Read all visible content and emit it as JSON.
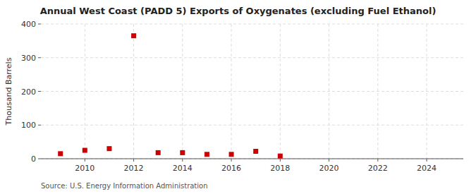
{
  "chart_data": {
    "type": "scatter",
    "title": "Annual West Coast (PADD 5) Exports of Oxygenates (excluding Fuel Ethanol)",
    "ylabel": "Thousand Barrels",
    "source": "Source: U.S. Energy Information Administration",
    "x": [
      2009,
      2010,
      2011,
      2012,
      2013,
      2014,
      2015,
      2016,
      2017,
      2018
    ],
    "values": [
      15,
      25,
      30,
      365,
      18,
      18,
      13,
      13,
      22,
      8
    ],
    "color": "#cc0000",
    "marker": "square",
    "xlim": [
      2008.2,
      2025.5
    ],
    "ylim": [
      0,
      400
    ],
    "yticks": [
      0,
      100,
      200,
      300,
      400
    ],
    "xticks": [
      2010,
      2012,
      2014,
      2016,
      2018,
      2020,
      2022,
      2024
    ],
    "grid": true
  }
}
